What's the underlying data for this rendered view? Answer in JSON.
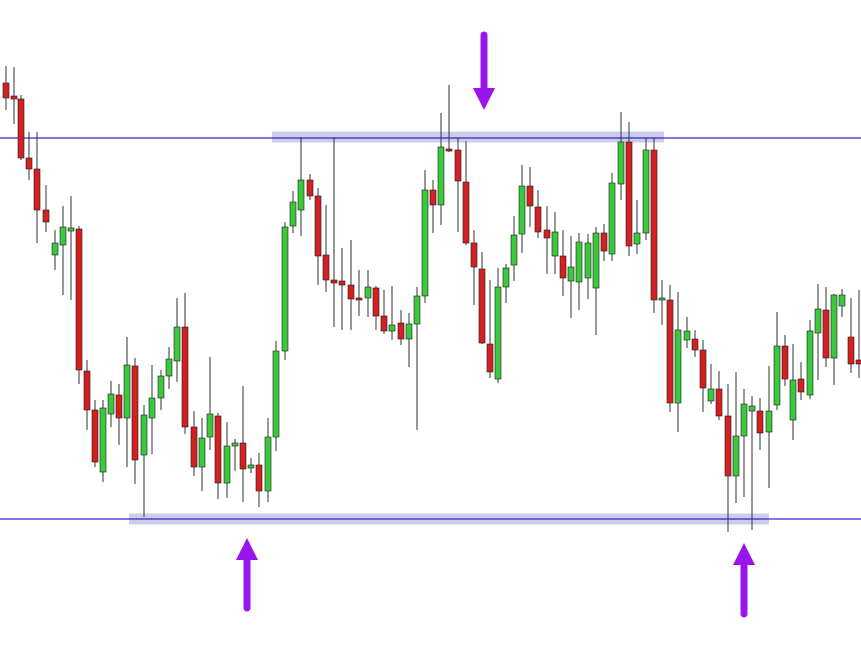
{
  "chart_data": {
    "type": "candlestick",
    "title": "",
    "xlabel": "",
    "ylabel": "",
    "ylim": [
      0,
      652
    ],
    "grid": false,
    "legend": "none",
    "colors": {
      "bull": "#3cc83c",
      "bear": "#d42020",
      "level_line": "#2a2ad0",
      "zone_band": "#9090cc",
      "arrow": "#9a14ec"
    },
    "levels": {
      "resistance": 138,
      "support": 519
    },
    "zones": [
      {
        "name": "resistance-zone",
        "from_x": 272,
        "to_x": 664,
        "y": 137
      },
      {
        "name": "support-zone",
        "from_x": 129,
        "to_x": 769,
        "y": 519
      }
    ],
    "arrows": [
      {
        "name": "down-arrow-top",
        "x": 484,
        "direction": "down"
      },
      {
        "name": "up-arrow-left",
        "x": 247,
        "direction": "up"
      },
      {
        "name": "up-arrow-right",
        "x": 744,
        "direction": "up"
      }
    ],
    "candles": [
      [
        6,
        66,
        83,
        98,
        110,
        "bear"
      ],
      [
        14,
        67,
        96,
        99,
        124,
        "bear"
      ],
      [
        21,
        95,
        99,
        158,
        160,
        "bear"
      ],
      [
        29,
        132,
        158,
        169,
        180,
        "bear"
      ],
      [
        37,
        132,
        169,
        210,
        243,
        "bear"
      ],
      [
        46,
        185,
        210,
        222,
        232,
        "bear"
      ],
      [
        55,
        230,
        243,
        255,
        270,
        "bull"
      ],
      [
        63,
        206,
        227,
        245,
        295,
        "bull"
      ],
      [
        71,
        196,
        228,
        231,
        300,
        "bull"
      ],
      [
        79,
        226,
        229,
        370,
        384,
        "bear"
      ],
      [
        87,
        360,
        371,
        410,
        430,
        "bear"
      ],
      [
        95,
        400,
        410,
        462,
        467,
        "bear"
      ],
      [
        103,
        400,
        408,
        472,
        482,
        "bull"
      ],
      [
        111,
        381,
        394,
        414,
        427,
        "bull"
      ],
      [
        119,
        384,
        395,
        418,
        445,
        "bear"
      ],
      [
        127,
        337,
        365,
        418,
        467,
        "bull"
      ],
      [
        135,
        358,
        366,
        460,
        484,
        "bear"
      ],
      [
        144,
        405,
        415,
        455,
        517,
        "bull"
      ],
      [
        152,
        365,
        398,
        418,
        454,
        "bull"
      ],
      [
        161,
        370,
        376,
        398,
        410,
        "bull"
      ],
      [
        169,
        347,
        359,
        376,
        389,
        "bull"
      ],
      [
        177,
        298,
        327,
        361,
        382,
        "bull"
      ],
      [
        185,
        293,
        327,
        427,
        434,
        "bear"
      ],
      [
        194,
        411,
        427,
        467,
        476,
        "bear"
      ],
      [
        202,
        418,
        438,
        467,
        491,
        "bull"
      ],
      [
        210,
        357,
        414,
        437,
        450,
        "bull"
      ],
      [
        218,
        413,
        416,
        483,
        499,
        "bear"
      ],
      [
        227,
        422,
        446,
        483,
        498,
        "bull"
      ],
      [
        235,
        439,
        443,
        446,
        471,
        "bull"
      ],
      [
        243,
        386,
        443,
        469,
        502,
        "bear"
      ],
      [
        251,
        458,
        465,
        468,
        473,
        "bull"
      ],
      [
        259,
        453,
        465,
        491,
        507,
        "bear"
      ],
      [
        268,
        418,
        437,
        491,
        502,
        "bull"
      ],
      [
        276,
        341,
        351,
        437,
        451,
        "bull"
      ],
      [
        285,
        222,
        227,
        351,
        360,
        "bull"
      ],
      [
        293,
        191,
        202,
        226,
        233,
        "bull"
      ],
      [
        301,
        137,
        180,
        210,
        236,
        "bull"
      ],
      [
        310,
        174,
        180,
        196,
        200,
        "bear"
      ],
      [
        318,
        188,
        196,
        256,
        285,
        "bear"
      ],
      [
        326,
        205,
        255,
        280,
        292,
        "bear"
      ],
      [
        334,
        137,
        280,
        283,
        327,
        "bear"
      ],
      [
        342,
        248,
        281,
        285,
        330,
        "bear"
      ],
      [
        351,
        240,
        285,
        299,
        330,
        "bear"
      ],
      [
        359,
        270,
        298,
        300,
        316,
        "bear"
      ],
      [
        368,
        270,
        287,
        298,
        317,
        "bull"
      ],
      [
        376,
        286,
        288,
        316,
        330,
        "bear"
      ],
      [
        384,
        290,
        316,
        331,
        334,
        "bear"
      ],
      [
        392,
        286,
        325,
        331,
        340,
        "bull"
      ],
      [
        401,
        310,
        323,
        339,
        345,
        "bear"
      ],
      [
        409,
        313,
        324,
        339,
        367,
        "bull"
      ],
      [
        417,
        287,
        296,
        324,
        430,
        "bull"
      ],
      [
        425,
        170,
        190,
        296,
        303,
        "bull"
      ],
      [
        433,
        180,
        190,
        205,
        233,
        "bear"
      ],
      [
        441,
        113,
        147,
        205,
        225,
        "bull"
      ],
      [
        449,
        85,
        149,
        150,
        152,
        "bear"
      ],
      [
        458,
        138,
        150,
        181,
        232,
        "bear"
      ],
      [
        466,
        141,
        182,
        243,
        245,
        "bear"
      ],
      [
        474,
        230,
        243,
        267,
        305,
        "bear"
      ],
      [
        482,
        252,
        269,
        343,
        344,
        "bear"
      ],
      [
        490,
        280,
        344,
        372,
        378,
        "bear"
      ],
      [
        498,
        268,
        287,
        379,
        383,
        "bull"
      ],
      [
        506,
        264,
        268,
        287,
        303,
        "bull"
      ],
      [
        514,
        216,
        235,
        265,
        281,
        "bull"
      ],
      [
        522,
        165,
        186,
        234,
        253,
        "bull"
      ],
      [
        530,
        167,
        186,
        206,
        227,
        "bear"
      ],
      [
        538,
        190,
        207,
        232,
        238,
        "bear"
      ],
      [
        547,
        206,
        230,
        238,
        274,
        "bear"
      ],
      [
        555,
        212,
        232,
        256,
        274,
        "bull"
      ],
      [
        563,
        230,
        256,
        278,
        296,
        "bear"
      ],
      [
        571,
        236,
        267,
        281,
        318,
        "bull"
      ],
      [
        579,
        233,
        242,
        282,
        310,
        "bull"
      ],
      [
        588,
        234,
        243,
        278,
        299,
        "bull"
      ],
      [
        596,
        227,
        233,
        288,
        335,
        "bull"
      ],
      [
        604,
        224,
        233,
        251,
        261,
        "bear"
      ],
      [
        612,
        173,
        183,
        254,
        261,
        "bull"
      ],
      [
        621,
        112,
        142,
        184,
        200,
        "bull"
      ],
      [
        629,
        122,
        142,
        246,
        256,
        "bear"
      ],
      [
        637,
        200,
        233,
        244,
        254,
        "bull"
      ],
      [
        646,
        138,
        150,
        233,
        240,
        "bull"
      ],
      [
        654,
        138,
        150,
        300,
        313,
        "bear"
      ],
      [
        662,
        280,
        298,
        300,
        325,
        "bull"
      ],
      [
        670,
        285,
        300,
        403,
        412,
        "bear"
      ],
      [
        678,
        292,
        330,
        403,
        432,
        "bull"
      ],
      [
        687,
        317,
        331,
        340,
        348,
        "bull"
      ],
      [
        695,
        330,
        339,
        350,
        357,
        "bear"
      ],
      [
        703,
        340,
        350,
        388,
        412,
        "bear"
      ],
      [
        711,
        364,
        389,
        401,
        404,
        "bull"
      ],
      [
        719,
        371,
        389,
        416,
        420,
        "bear"
      ],
      [
        728,
        384,
        416,
        476,
        532,
        "bear"
      ],
      [
        736,
        372,
        436,
        476,
        503,
        "bull"
      ],
      [
        744,
        389,
        404,
        436,
        497,
        "bull"
      ],
      [
        752,
        396,
        406,
        411,
        530,
        "bull"
      ],
      [
        760,
        398,
        411,
        433,
        450,
        "bear"
      ],
      [
        769,
        366,
        411,
        432,
        488,
        "bull"
      ],
      [
        777,
        312,
        346,
        405,
        410,
        "bull"
      ],
      [
        785,
        335,
        346,
        379,
        386,
        "bear"
      ],
      [
        793,
        344,
        380,
        420,
        440,
        "bull"
      ],
      [
        801,
        362,
        379,
        392,
        400,
        "bear"
      ],
      [
        810,
        320,
        331,
        395,
        399,
        "bull"
      ],
      [
        818,
        284,
        309,
        333,
        380,
        "bull"
      ],
      [
        826,
        287,
        310,
        358,
        367,
        "bear"
      ],
      [
        834,
        294,
        295,
        358,
        385,
        "bull"
      ],
      [
        842,
        289,
        295,
        306,
        317,
        "bull"
      ],
      [
        851,
        298,
        337,
        364,
        373,
        "bear"
      ],
      [
        859,
        290,
        360,
        364,
        378,
        "bear"
      ]
    ]
  }
}
